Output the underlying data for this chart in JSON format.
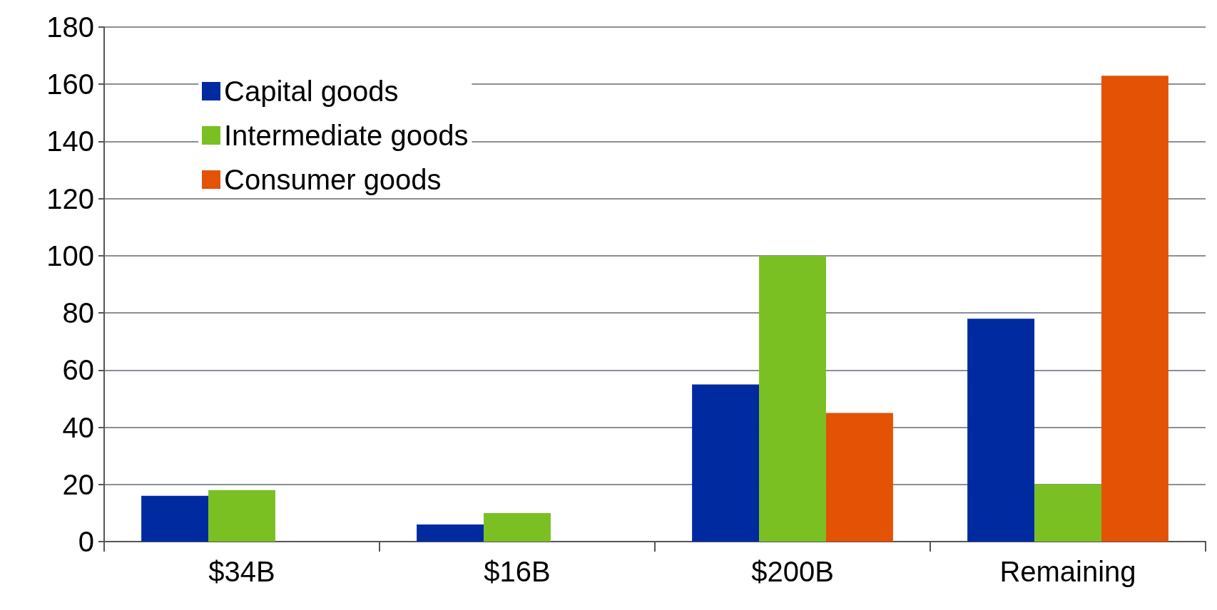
{
  "chart_data": {
    "type": "bar",
    "categories": [
      "$34B",
      "$16B",
      "$200B",
      "Remaining"
    ],
    "series": [
      {
        "name": "Capital goods",
        "color": "#002aa0",
        "values": [
          16,
          6,
          55,
          78
        ]
      },
      {
        "name": "Intermediate goods",
        "color": "#7ac023",
        "values": [
          18,
          10,
          100,
          20
        ]
      },
      {
        "name": "Consumer goods",
        "color": "#e35205",
        "values": [
          null,
          null,
          45,
          163
        ]
      }
    ],
    "ylim": [
      0,
      180
    ],
    "yticks": [
      0,
      20,
      40,
      60,
      80,
      100,
      120,
      140,
      160,
      180
    ],
    "grid": "y",
    "legend": "top left"
  }
}
